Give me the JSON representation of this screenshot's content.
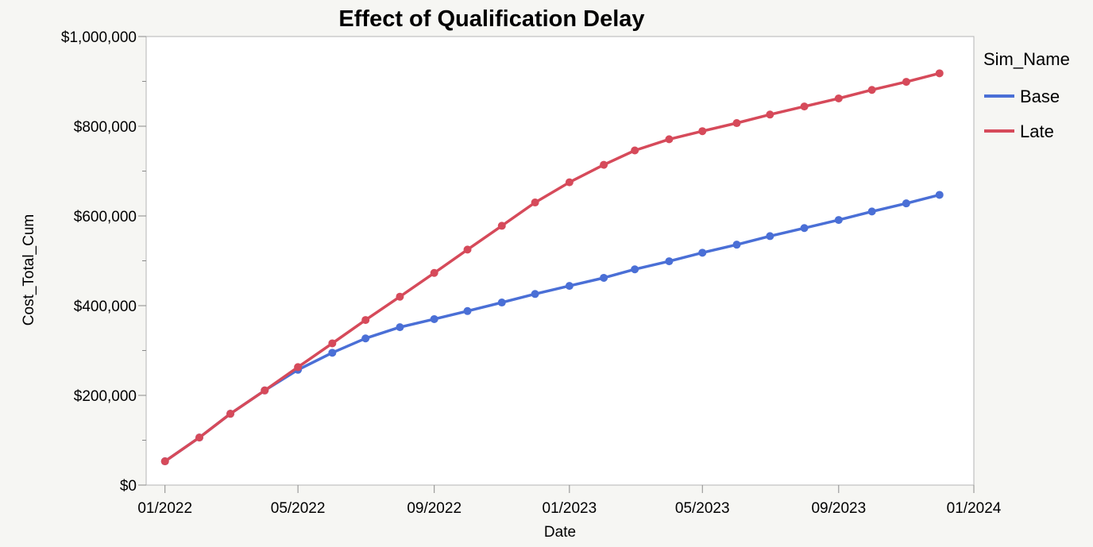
{
  "chart_data": {
    "type": "line",
    "title": "Effect of Qualification Delay",
    "xlabel": "Date",
    "ylabel": "Cost_Total_Cum",
    "ylim": [
      0,
      1000000
    ],
    "xlim": [
      "2021-12-15",
      "2024-01-01"
    ],
    "x_ticks": [
      "01/2022",
      "05/2022",
      "09/2022",
      "01/2023",
      "05/2023",
      "09/2023",
      "01/2024"
    ],
    "x_tick_dates": [
      "2022-01-01",
      "2022-05-01",
      "2022-09-01",
      "2023-01-01",
      "2023-05-01",
      "2023-09-01",
      "2024-01-01"
    ],
    "y_ticks": [
      "$0",
      "$200,000",
      "$400,000",
      "$600,000",
      "$800,000",
      "$1,000,000"
    ],
    "y_tick_values": [
      0,
      200000,
      400000,
      600000,
      800000,
      1000000
    ],
    "y_minor_tick_values": [
      100000,
      300000,
      500000,
      700000,
      900000
    ],
    "grid": false,
    "legend": {
      "title": "Sim_Name",
      "position": "right"
    },
    "x": [
      "2022-01-01",
      "2022-02-01",
      "2022-03-01",
      "2022-04-01",
      "2022-05-01",
      "2022-06-01",
      "2022-07-01",
      "2022-08-01",
      "2022-09-01",
      "2022-10-01",
      "2022-11-01",
      "2022-12-01",
      "2023-01-01",
      "2023-02-01",
      "2023-03-01",
      "2023-04-01",
      "2023-05-01",
      "2023-06-01",
      "2023-07-01",
      "2023-08-01",
      "2023-09-01",
      "2023-10-01",
      "2023-11-01",
      "2023-12-01"
    ],
    "series": [
      {
        "name": "Base",
        "color": "#4a6fd6",
        "values": [
          53000,
          106000,
          159000,
          211000,
          257000,
          295000,
          327000,
          352000,
          370000,
          388000,
          407000,
          426000,
          444000,
          462000,
          481000,
          499000,
          518000,
          536000,
          555000,
          573000,
          591000,
          610000,
          628000,
          647000
        ]
      },
      {
        "name": "Late",
        "color": "#d64a5a",
        "values": [
          53000,
          106000,
          159000,
          211000,
          263000,
          316000,
          368000,
          420000,
          473000,
          525000,
          578000,
          630000,
          675000,
          714000,
          746000,
          771000,
          789000,
          807000,
          826000,
          844000,
          862000,
          881000,
          899000,
          918000
        ]
      }
    ]
  }
}
